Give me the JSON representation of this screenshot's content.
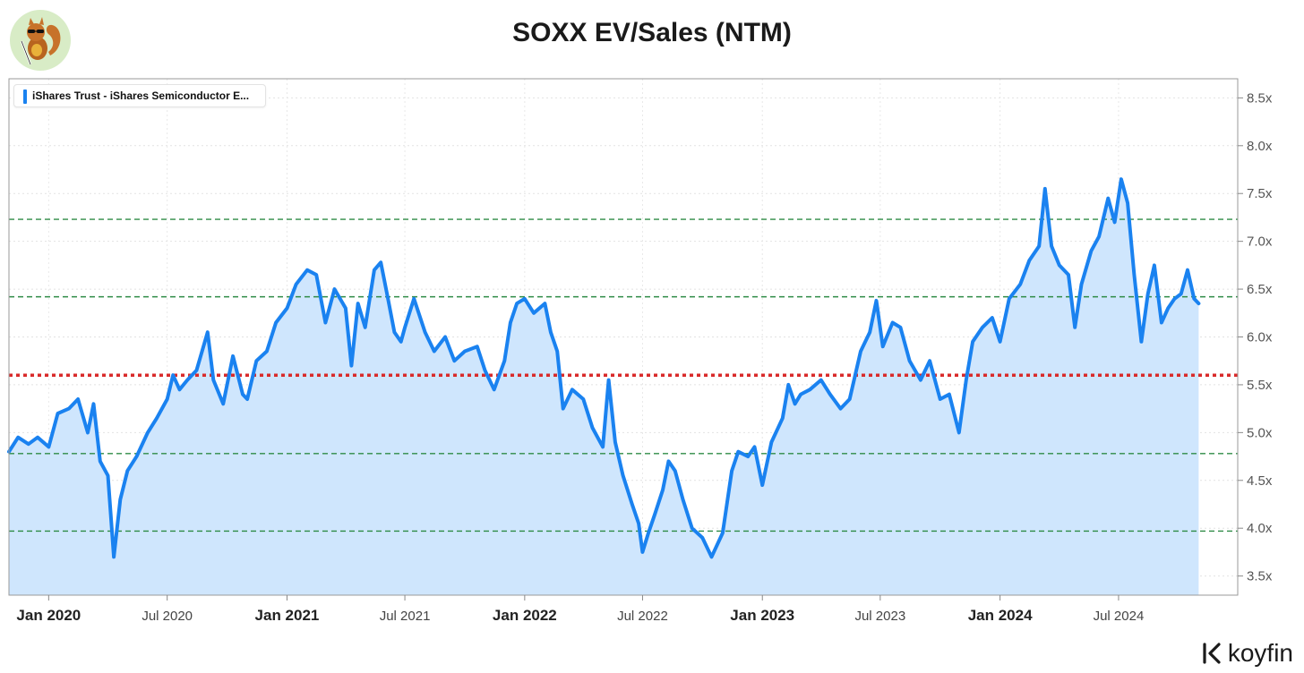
{
  "header": {
    "title": "SOXX EV/Sales (NTM)",
    "logo_icon": "squirrel-mascot-icon"
  },
  "legend": {
    "label": "iShares Trust - iShares Semiconductor E...",
    "color": "#1a82f0"
  },
  "brand": {
    "name": "koyfin",
    "icon": "koyfin-logo-icon"
  },
  "chart_data": {
    "type": "area",
    "title": "SOXX EV/Sales (NTM)",
    "xlabel": "",
    "ylabel": "",
    "x_range": [
      "2019-11-01",
      "2024-12-31"
    ],
    "ylim": [
      3.3,
      8.7
    ],
    "y_ticks": [
      3.5,
      4.0,
      4.5,
      5.0,
      5.5,
      6.0,
      6.5,
      7.0,
      7.5,
      8.0,
      8.5
    ],
    "y_tick_labels": [
      "3.5x",
      "4.0x",
      "4.5x",
      "5.0x",
      "5.5x",
      "6.0x",
      "6.5x",
      "7.0x",
      "7.5x",
      "8.0x",
      "8.5x"
    ],
    "x_ticks": [
      {
        "date": "2020-01-01",
        "label": "Jan 2020",
        "major": true
      },
      {
        "date": "2020-07-01",
        "label": "Jul 2020",
        "major": false
      },
      {
        "date": "2021-01-01",
        "label": "Jan 2021",
        "major": true
      },
      {
        "date": "2021-07-01",
        "label": "Jul 2021",
        "major": false
      },
      {
        "date": "2022-01-01",
        "label": "Jan 2022",
        "major": true
      },
      {
        "date": "2022-07-01",
        "label": "Jul 2022",
        "major": false
      },
      {
        "date": "2023-01-01",
        "label": "Jan 2023",
        "major": true
      },
      {
        "date": "2023-07-01",
        "label": "Jul 2023",
        "major": false
      },
      {
        "date": "2024-01-01",
        "label": "Jan 2024",
        "major": true
      },
      {
        "date": "2024-07-01",
        "label": "Jul 2024",
        "major": false
      }
    ],
    "grid": true,
    "legend_position": "top-left",
    "colors": {
      "line": "#1a82f0",
      "fill": "#cfe6fd",
      "mean": "#d92a2a",
      "bands": "#2e8b45"
    },
    "reference_lines": [
      {
        "value": 5.6,
        "style": "dotted",
        "color": "#d92a2a"
      },
      {
        "value": 6.42,
        "style": "dashed",
        "color": "#2e8b45"
      },
      {
        "value": 4.78,
        "style": "dashed",
        "color": "#2e8b45"
      },
      {
        "value": 7.23,
        "style": "dashed",
        "color": "#2e8b45"
      },
      {
        "value": 3.97,
        "style": "dashed",
        "color": "#2e8b45"
      }
    ],
    "series": [
      {
        "name": "iShares Trust - iShares Semiconductor E...",
        "points": [
          [
            "2019-11-01",
            4.8
          ],
          [
            "2019-11-15",
            4.95
          ],
          [
            "2019-12-01",
            4.88
          ],
          [
            "2019-12-15",
            4.95
          ],
          [
            "2020-01-01",
            4.85
          ],
          [
            "2020-01-15",
            5.2
          ],
          [
            "2020-02-01",
            5.25
          ],
          [
            "2020-02-15",
            5.35
          ],
          [
            "2020-03-01",
            5.0
          ],
          [
            "2020-03-10",
            5.3
          ],
          [
            "2020-03-20",
            4.7
          ],
          [
            "2020-04-01",
            4.55
          ],
          [
            "2020-04-10",
            3.7
          ],
          [
            "2020-04-20",
            4.3
          ],
          [
            "2020-05-01",
            4.6
          ],
          [
            "2020-05-15",
            4.75
          ],
          [
            "2020-06-01",
            5.0
          ],
          [
            "2020-06-15",
            5.15
          ],
          [
            "2020-07-01",
            5.35
          ],
          [
            "2020-07-10",
            5.6
          ],
          [
            "2020-07-20",
            5.45
          ],
          [
            "2020-08-01",
            5.55
          ],
          [
            "2020-08-15",
            5.65
          ],
          [
            "2020-09-01",
            6.05
          ],
          [
            "2020-09-10",
            5.55
          ],
          [
            "2020-09-25",
            5.3
          ],
          [
            "2020-10-10",
            5.8
          ],
          [
            "2020-10-25",
            5.4
          ],
          [
            "2020-11-01",
            5.35
          ],
          [
            "2020-11-15",
            5.75
          ],
          [
            "2020-12-01",
            5.85
          ],
          [
            "2020-12-15",
            6.15
          ],
          [
            "2021-01-01",
            6.3
          ],
          [
            "2021-01-15",
            6.55
          ],
          [
            "2021-02-01",
            6.7
          ],
          [
            "2021-02-15",
            6.65
          ],
          [
            "2021-03-01",
            6.15
          ],
          [
            "2021-03-15",
            6.5
          ],
          [
            "2021-04-01",
            6.3
          ],
          [
            "2021-04-10",
            5.7
          ],
          [
            "2021-04-20",
            6.35
          ],
          [
            "2021-05-01",
            6.1
          ],
          [
            "2021-05-15",
            6.7
          ],
          [
            "2021-05-25",
            6.78
          ],
          [
            "2021-06-05",
            6.4
          ],
          [
            "2021-06-15",
            6.05
          ],
          [
            "2021-06-25",
            5.95
          ],
          [
            "2021-07-01",
            6.1
          ],
          [
            "2021-07-15",
            6.4
          ],
          [
            "2021-08-01",
            6.05
          ],
          [
            "2021-08-15",
            5.85
          ],
          [
            "2021-09-01",
            6.0
          ],
          [
            "2021-09-15",
            5.75
          ],
          [
            "2021-10-01",
            5.85
          ],
          [
            "2021-10-20",
            5.9
          ],
          [
            "2021-11-01",
            5.65
          ],
          [
            "2021-11-15",
            5.45
          ],
          [
            "2021-12-01",
            5.75
          ],
          [
            "2021-12-10",
            6.15
          ],
          [
            "2021-12-20",
            6.35
          ],
          [
            "2022-01-01",
            6.4
          ],
          [
            "2022-01-15",
            6.25
          ],
          [
            "2022-02-01",
            6.35
          ],
          [
            "2022-02-10",
            6.05
          ],
          [
            "2022-02-20",
            5.85
          ],
          [
            "2022-03-01",
            5.25
          ],
          [
            "2022-03-15",
            5.45
          ],
          [
            "2022-04-01",
            5.35
          ],
          [
            "2022-04-15",
            5.05
          ],
          [
            "2022-05-01",
            4.85
          ],
          [
            "2022-05-10",
            5.55
          ],
          [
            "2022-05-20",
            4.9
          ],
          [
            "2022-06-01",
            4.55
          ],
          [
            "2022-06-15",
            4.25
          ],
          [
            "2022-06-25",
            4.05
          ],
          [
            "2022-07-01",
            3.75
          ],
          [
            "2022-07-10",
            3.95
          ],
          [
            "2022-07-20",
            4.15
          ],
          [
            "2022-08-01",
            4.4
          ],
          [
            "2022-08-10",
            4.7
          ],
          [
            "2022-08-20",
            4.6
          ],
          [
            "2022-09-01",
            4.3
          ],
          [
            "2022-09-15",
            4.0
          ],
          [
            "2022-10-01",
            3.9
          ],
          [
            "2022-10-15",
            3.7
          ],
          [
            "2022-11-01",
            3.95
          ],
          [
            "2022-11-15",
            4.6
          ],
          [
            "2022-11-25",
            4.8
          ],
          [
            "2022-12-10",
            4.75
          ],
          [
            "2022-12-20",
            4.85
          ],
          [
            "2023-01-01",
            4.45
          ],
          [
            "2023-01-15",
            4.9
          ],
          [
            "2023-02-01",
            5.15
          ],
          [
            "2023-02-10",
            5.5
          ],
          [
            "2023-02-20",
            5.3
          ],
          [
            "2023-03-01",
            5.4
          ],
          [
            "2023-03-15",
            5.45
          ],
          [
            "2023-04-01",
            5.55
          ],
          [
            "2023-04-15",
            5.4
          ],
          [
            "2023-05-01",
            5.25
          ],
          [
            "2023-05-15",
            5.35
          ],
          [
            "2023-06-01",
            5.85
          ],
          [
            "2023-06-15",
            6.05
          ],
          [
            "2023-06-25",
            6.38
          ],
          [
            "2023-07-05",
            5.9
          ],
          [
            "2023-07-20",
            6.15
          ],
          [
            "2023-08-01",
            6.1
          ],
          [
            "2023-08-15",
            5.75
          ],
          [
            "2023-09-01",
            5.55
          ],
          [
            "2023-09-15",
            5.75
          ],
          [
            "2023-10-01",
            5.35
          ],
          [
            "2023-10-15",
            5.4
          ],
          [
            "2023-10-30",
            5.0
          ],
          [
            "2023-11-10",
            5.55
          ],
          [
            "2023-11-20",
            5.95
          ],
          [
            "2023-12-05",
            6.1
          ],
          [
            "2023-12-20",
            6.2
          ],
          [
            "2024-01-01",
            5.95
          ],
          [
            "2024-01-15",
            6.4
          ],
          [
            "2024-02-01",
            6.55
          ],
          [
            "2024-02-15",
            6.8
          ],
          [
            "2024-03-01",
            6.95
          ],
          [
            "2024-03-10",
            7.55
          ],
          [
            "2024-03-20",
            6.95
          ],
          [
            "2024-04-01",
            6.75
          ],
          [
            "2024-04-15",
            6.65
          ],
          [
            "2024-04-25",
            6.1
          ],
          [
            "2024-05-05",
            6.55
          ],
          [
            "2024-05-20",
            6.9
          ],
          [
            "2024-06-01",
            7.05
          ],
          [
            "2024-06-15",
            7.45
          ],
          [
            "2024-06-25",
            7.2
          ],
          [
            "2024-07-05",
            7.65
          ],
          [
            "2024-07-15",
            7.4
          ],
          [
            "2024-07-25",
            6.65
          ],
          [
            "2024-08-05",
            5.95
          ],
          [
            "2024-08-15",
            6.45
          ],
          [
            "2024-08-25",
            6.75
          ],
          [
            "2024-09-05",
            6.15
          ],
          [
            "2024-09-15",
            6.3
          ],
          [
            "2024-09-25",
            6.4
          ],
          [
            "2024-10-05",
            6.45
          ],
          [
            "2024-10-15",
            6.7
          ],
          [
            "2024-10-25",
            6.4
          ],
          [
            "2024-11-01",
            6.35
          ]
        ]
      }
    ]
  }
}
